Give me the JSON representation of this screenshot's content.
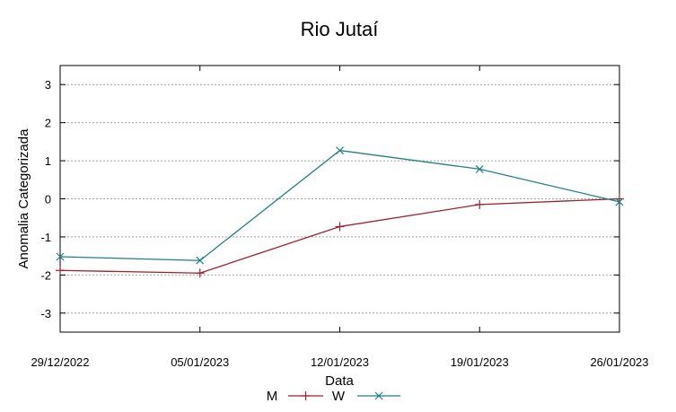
{
  "chart_data": {
    "type": "line",
    "title": "Rio Jutaí",
    "xlabel": "Data",
    "ylabel": "Anomalia Categorizada",
    "categories": [
      "29/12/2022",
      "05/01/2023",
      "12/01/2023",
      "19/01/2023",
      "26/01/2023"
    ],
    "ylim": [
      -3.5,
      3.5
    ],
    "yticks": [
      3,
      2,
      1,
      0,
      -1,
      -2,
      -3
    ],
    "ytick_labels": [
      "3",
      "2",
      "1",
      "0",
      "-1",
      "-2",
      "-3"
    ],
    "grid": true,
    "legend_position": "bottom",
    "series": [
      {
        "name": "M",
        "color": "#a0202a",
        "marker": "plus",
        "values": [
          -1.88,
          -1.95,
          -0.73,
          -0.15,
          0.0
        ]
      },
      {
        "name": "W",
        "color": "#207f86",
        "marker": "cross",
        "values": [
          -1.52,
          -1.62,
          1.27,
          0.78,
          -0.08
        ]
      }
    ]
  }
}
